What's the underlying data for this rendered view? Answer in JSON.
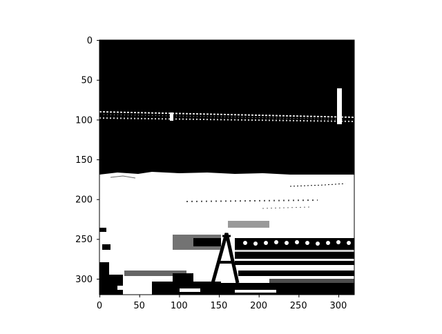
{
  "chart_data": {
    "type": "heatmap",
    "title": "",
    "xlabel": "",
    "ylabel": "",
    "image_width": 320,
    "image_height": 320,
    "xlim": [
      -0.5,
      319.5
    ],
    "ylim": [
      319.5,
      -0.5
    ],
    "x_ticks": [
      0,
      50,
      100,
      150,
      200,
      250,
      300
    ],
    "y_ticks": [
      0,
      50,
      100,
      150,
      200,
      250,
      300
    ],
    "x_tick_labels": [
      "0",
      "50",
      "100",
      "150",
      "200",
      "250",
      "300"
    ],
    "y_tick_labels": [
      "0",
      "50",
      "100",
      "150",
      "200",
      "250",
      "300"
    ],
    "colormap": "gray",
    "colors": {
      "low": "#000000",
      "high": "#ffffff"
    },
    "content": "binary thresholded photograph"
  }
}
